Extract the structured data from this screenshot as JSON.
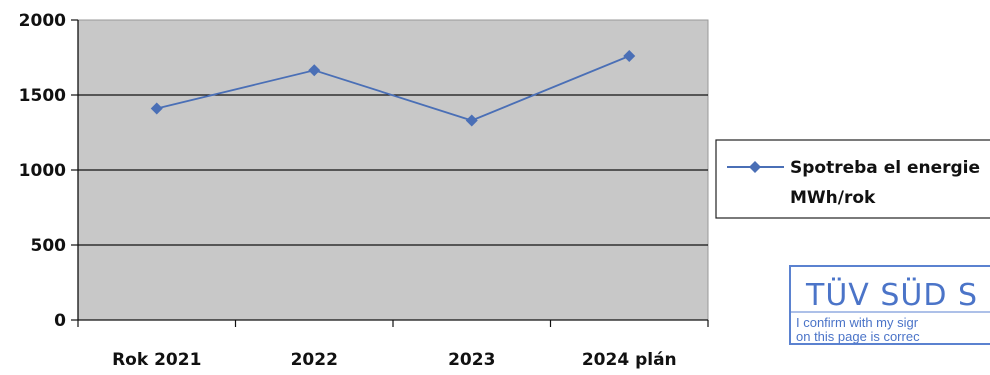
{
  "chart_data": {
    "type": "line",
    "categories": [
      "Rok 2021",
      "2022",
      "2023",
      "2024 plán"
    ],
    "series": [
      {
        "name": "Spotreba el energie MWh/rok",
        "values": [
          1410,
          1665,
          1330,
          1760
        ],
        "color": "#4a6fb6",
        "marker": "diamond"
      }
    ],
    "ylim": [
      0,
      2000
    ],
    "yticks": [
      0,
      500,
      1000,
      1500,
      2000
    ],
    "grid": true,
    "plot_background": "#c8c8c8",
    "legend_position": "right",
    "title": "",
    "xlabel": "",
    "ylabel": ""
  },
  "legend": {
    "line1": "Spotreba el energie",
    "line2": "MWh/rok"
  },
  "stamp": {
    "title": "TÜV SÜD S",
    "line1": "I confirm with my sigr",
    "line2": "on this page is correc"
  }
}
